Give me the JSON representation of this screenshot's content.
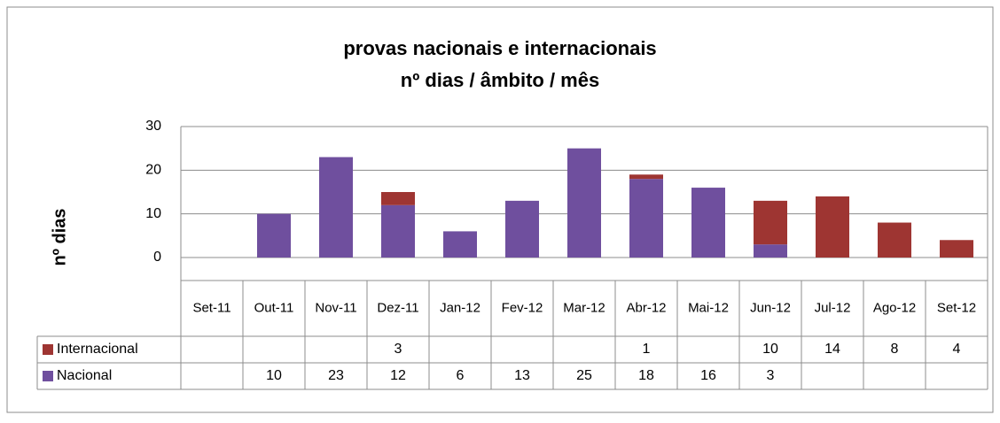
{
  "chart_data": {
    "type": "stacked_bar",
    "title": "provas nacionais e internacionais",
    "subtitle": "nº dias / âmbito / mês",
    "y_label": "nº dias",
    "categories": [
      "Set-11",
      "Out-11",
      "Nov-11",
      "Dez-11",
      "Jan-12",
      "Fev-12",
      "Mar-12",
      "Abr-12",
      "Mai-12",
      "Jun-12",
      "Jul-12",
      "Ago-12",
      "Set-12"
    ],
    "series": [
      {
        "name": "Nacional",
        "color": "#6f4f9e",
        "values": [
          null,
          10,
          23,
          12,
          6,
          13,
          25,
          18,
          16,
          3,
          null,
          null,
          null
        ]
      },
      {
        "name": "Internacional",
        "color": "#9e3532",
        "values": [
          null,
          null,
          null,
          3,
          null,
          null,
          null,
          1,
          null,
          10,
          14,
          8,
          4
        ]
      }
    ],
    "ylim": [
      0,
      30
    ],
    "yticks": [
      0,
      10,
      20,
      30
    ],
    "grid": true,
    "data_table": true
  }
}
